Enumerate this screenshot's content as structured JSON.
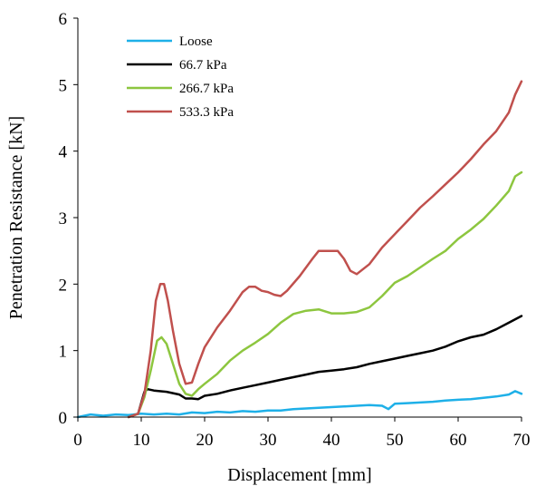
{
  "chart_data": {
    "type": "line",
    "title": "",
    "xlabel": "Displacement [mm]",
    "ylabel": "Penetration Resistance [kN]",
    "xlim": [
      0,
      70
    ],
    "ylim": [
      0,
      6
    ],
    "xticks": [
      "0",
      "10",
      "20",
      "30",
      "40",
      "50",
      "60",
      "70"
    ],
    "yticks": [
      "0",
      "1",
      "2",
      "3",
      "4",
      "5",
      "6"
    ],
    "grid": false,
    "legend_position": "top-left",
    "series": [
      {
        "name": "Loose",
        "color": "#1EB0E8",
        "points": [
          [
            0,
            0
          ],
          [
            2,
            0.04
          ],
          [
            4,
            0.02
          ],
          [
            6,
            0.04
          ],
          [
            8,
            0.03
          ],
          [
            10,
            0.05
          ],
          [
            12,
            0.04
          ],
          [
            14,
            0.05
          ],
          [
            16,
            0.04
          ],
          [
            18,
            0.07
          ],
          [
            20,
            0.06
          ],
          [
            22,
            0.08
          ],
          [
            24,
            0.07
          ],
          [
            26,
            0.09
          ],
          [
            28,
            0.08
          ],
          [
            30,
            0.1
          ],
          [
            32,
            0.1
          ],
          [
            34,
            0.12
          ],
          [
            36,
            0.13
          ],
          [
            38,
            0.14
          ],
          [
            40,
            0.15
          ],
          [
            42,
            0.16
          ],
          [
            44,
            0.17
          ],
          [
            46,
            0.18
          ],
          [
            48,
            0.17
          ],
          [
            49,
            0.12
          ],
          [
            50,
            0.2
          ],
          [
            52,
            0.21
          ],
          [
            54,
            0.22
          ],
          [
            56,
            0.23
          ],
          [
            58,
            0.25
          ],
          [
            60,
            0.26
          ],
          [
            62,
            0.27
          ],
          [
            64,
            0.29
          ],
          [
            66,
            0.31
          ],
          [
            68,
            0.34
          ],
          [
            69,
            0.39
          ],
          [
            70,
            0.35
          ]
        ]
      },
      {
        "name": "66.7 kPa",
        "color": "#000000",
        "points": [
          [
            8,
            0
          ],
          [
            9.5,
            0.05
          ],
          [
            10.5,
            0.38
          ],
          [
            11,
            0.42
          ],
          [
            12,
            0.4
          ],
          [
            14,
            0.38
          ],
          [
            16,
            0.34
          ],
          [
            17,
            0.28
          ],
          [
            18,
            0.28
          ],
          [
            19,
            0.27
          ],
          [
            20,
            0.32
          ],
          [
            22,
            0.35
          ],
          [
            24,
            0.4
          ],
          [
            26,
            0.44
          ],
          [
            28,
            0.48
          ],
          [
            30,
            0.52
          ],
          [
            32,
            0.56
          ],
          [
            34,
            0.6
          ],
          [
            36,
            0.64
          ],
          [
            38,
            0.68
          ],
          [
            40,
            0.7
          ],
          [
            42,
            0.72
          ],
          [
            44,
            0.75
          ],
          [
            46,
            0.8
          ],
          [
            48,
            0.84
          ],
          [
            50,
            0.88
          ],
          [
            52,
            0.92
          ],
          [
            54,
            0.96
          ],
          [
            56,
            1.0
          ],
          [
            58,
            1.06
          ],
          [
            60,
            1.14
          ],
          [
            62,
            1.2
          ],
          [
            64,
            1.24
          ],
          [
            66,
            1.32
          ],
          [
            68,
            1.42
          ],
          [
            70,
            1.52
          ]
        ]
      },
      {
        "name": "266.7 kPa",
        "color": "#8DC63F",
        "points": [
          [
            8,
            0
          ],
          [
            9.5,
            0.05
          ],
          [
            10.5,
            0.3
          ],
          [
            11.5,
            0.7
          ],
          [
            12.5,
            1.15
          ],
          [
            13.2,
            1.2
          ],
          [
            14,
            1.1
          ],
          [
            15,
            0.8
          ],
          [
            16,
            0.5
          ],
          [
            17,
            0.35
          ],
          [
            18,
            0.32
          ],
          [
            19,
            0.42
          ],
          [
            20,
            0.5
          ],
          [
            22,
            0.65
          ],
          [
            24,
            0.85
          ],
          [
            26,
            1.0
          ],
          [
            28,
            1.12
          ],
          [
            30,
            1.25
          ],
          [
            32,
            1.42
          ],
          [
            34,
            1.55
          ],
          [
            36,
            1.6
          ],
          [
            38,
            1.62
          ],
          [
            40,
            1.56
          ],
          [
            42,
            1.56
          ],
          [
            44,
            1.58
          ],
          [
            46,
            1.65
          ],
          [
            48,
            1.82
          ],
          [
            50,
            2.02
          ],
          [
            52,
            2.12
          ],
          [
            54,
            2.25
          ],
          [
            56,
            2.38
          ],
          [
            58,
            2.5
          ],
          [
            60,
            2.68
          ],
          [
            62,
            2.82
          ],
          [
            64,
            2.98
          ],
          [
            66,
            3.18
          ],
          [
            68,
            3.4
          ],
          [
            69,
            3.62
          ],
          [
            70,
            3.68
          ]
        ]
      },
      {
        "name": "533.3 kPa",
        "color": "#C0504D",
        "points": [
          [
            8,
            0
          ],
          [
            9.5,
            0.05
          ],
          [
            10.5,
            0.35
          ],
          [
            11.5,
            1.0
          ],
          [
            12.3,
            1.75
          ],
          [
            13,
            2.0
          ],
          [
            13.6,
            2.0
          ],
          [
            14.2,
            1.75
          ],
          [
            15,
            1.3
          ],
          [
            16,
            0.8
          ],
          [
            17,
            0.5
          ],
          [
            18,
            0.52
          ],
          [
            19,
            0.8
          ],
          [
            20,
            1.05
          ],
          [
            22,
            1.35
          ],
          [
            24,
            1.6
          ],
          [
            26,
            1.88
          ],
          [
            27,
            1.96
          ],
          [
            28,
            1.96
          ],
          [
            29,
            1.9
          ],
          [
            30,
            1.88
          ],
          [
            31,
            1.84
          ],
          [
            32,
            1.82
          ],
          [
            33,
            1.9
          ],
          [
            35,
            2.12
          ],
          [
            37,
            2.38
          ],
          [
            38,
            2.5
          ],
          [
            40,
            2.5
          ],
          [
            41,
            2.5
          ],
          [
            42,
            2.38
          ],
          [
            43,
            2.2
          ],
          [
            44,
            2.15
          ],
          [
            46,
            2.3
          ],
          [
            48,
            2.55
          ],
          [
            50,
            2.75
          ],
          [
            52,
            2.95
          ],
          [
            54,
            3.15
          ],
          [
            56,
            3.32
          ],
          [
            58,
            3.5
          ],
          [
            60,
            3.68
          ],
          [
            62,
            3.88
          ],
          [
            64,
            4.1
          ],
          [
            66,
            4.3
          ],
          [
            68,
            4.58
          ],
          [
            69,
            4.85
          ],
          [
            70,
            5.05
          ]
        ]
      }
    ]
  }
}
